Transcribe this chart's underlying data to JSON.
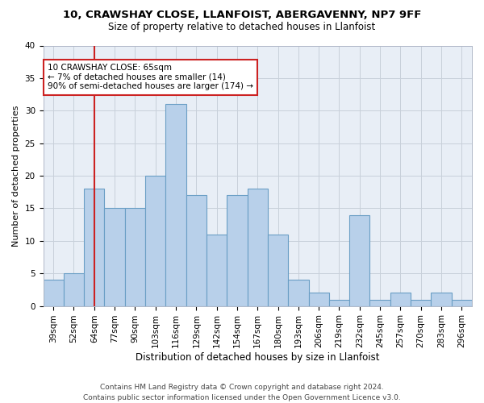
{
  "title1": "10, CRAWSHAY CLOSE, LLANFOIST, ABERGAVENNY, NP7 9FF",
  "title2": "Size of property relative to detached houses in Llanfoist",
  "xlabel": "Distribution of detached houses by size in Llanfoist",
  "ylabel": "Number of detached properties",
  "categories": [
    "39sqm",
    "52sqm",
    "64sqm",
    "77sqm",
    "90sqm",
    "103sqm",
    "116sqm",
    "129sqm",
    "142sqm",
    "154sqm",
    "167sqm",
    "180sqm",
    "193sqm",
    "206sqm",
    "219sqm",
    "232sqm",
    "245sqm",
    "257sqm",
    "270sqm",
    "283sqm",
    "296sqm"
  ],
  "values": [
    4,
    5,
    18,
    15,
    15,
    20,
    31,
    17,
    11,
    17,
    18,
    11,
    4,
    2,
    1,
    14,
    1,
    2,
    1,
    2,
    1
  ],
  "bar_color": "#b8d0ea",
  "bar_edge_color": "#6a9ec5",
  "grid_color": "#c8d0da",
  "bg_color": "#e8eef6",
  "vline_x_index": 2,
  "vline_color": "#cc2222",
  "annotation_text": "10 CRAWSHAY CLOSE: 65sqm\n← 7% of detached houses are smaller (14)\n90% of semi-detached houses are larger (174) →",
  "annotation_box_color": "#cc2222",
  "ylim": [
    0,
    40
  ],
  "yticks": [
    0,
    5,
    10,
    15,
    20,
    25,
    30,
    35,
    40
  ],
  "footer": "Contains HM Land Registry data © Crown copyright and database right 2024.\nContains public sector information licensed under the Open Government Licence v3.0.",
  "title1_fontsize": 9.5,
  "title2_fontsize": 8.5,
  "xlabel_fontsize": 8.5,
  "ylabel_fontsize": 8,
  "tick_fontsize": 7.5,
  "ann_fontsize": 7.5,
  "footer_fontsize": 6.5
}
